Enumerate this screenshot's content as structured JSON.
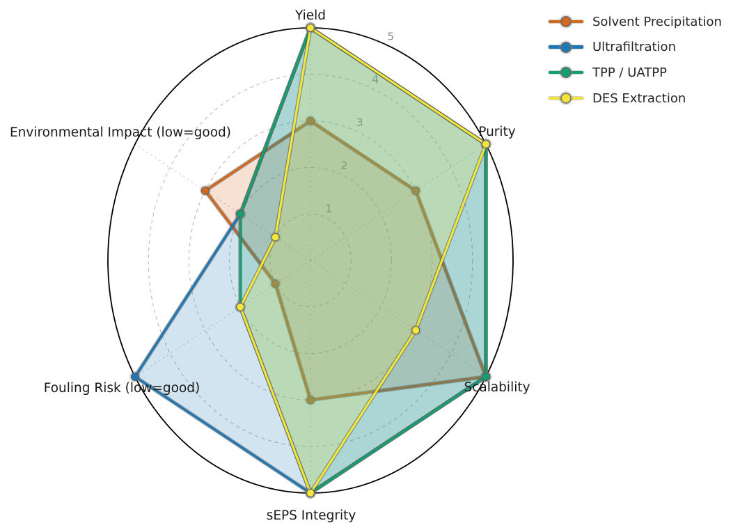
{
  "chart_data": {
    "type": "radar",
    "categories": [
      "Yield",
      "Purity",
      "Scalability",
      "sEPS Integrity",
      "Fouling Risk (low=good)",
      "Environmental Impact (low=good)"
    ],
    "series": [
      {
        "name": "Solvent Precipitation",
        "color": "#d2691e",
        "values": [
          3,
          3,
          5,
          3,
          1,
          3
        ]
      },
      {
        "name": "Ultrafiltration",
        "color": "#1f77b4",
        "values": [
          5,
          5,
          5,
          5,
          5,
          2
        ]
      },
      {
        "name": "TPP / UATPP",
        "color": "#13a06f",
        "values": [
          5,
          5,
          5,
          5,
          2,
          2
        ]
      },
      {
        "name": "DES Extraction",
        "color": "#f2e63d",
        "values": [
          5,
          5,
          3,
          5,
          2,
          1
        ]
      }
    ],
    "r_ticks": [
      1,
      2,
      3,
      4,
      5
    ],
    "r_max": 5,
    "grid": "dashed",
    "legend_position": "top-right",
    "tick_color": "#8a8a8a",
    "label_color": "#1a1a1a",
    "spine_color": "#000000",
    "fill_opacity": 0.2
  }
}
